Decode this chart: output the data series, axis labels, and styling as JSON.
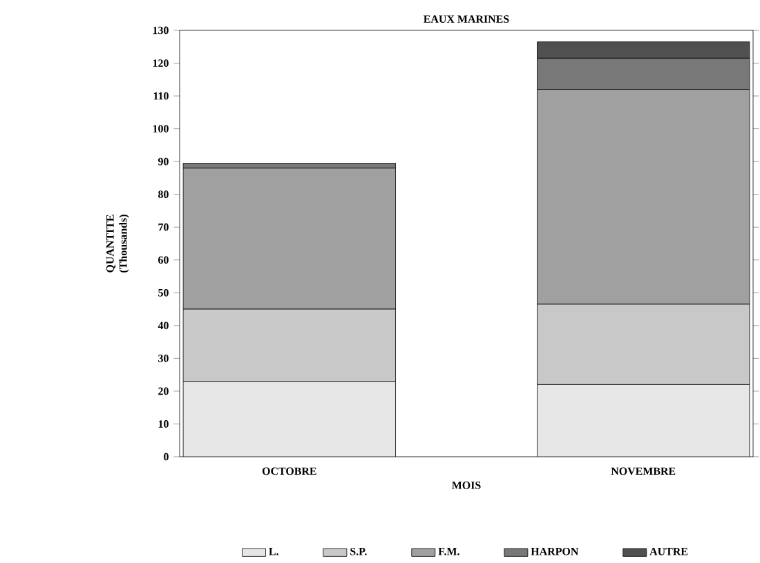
{
  "chart_data": {
    "type": "bar",
    "stacked": true,
    "title": "EAUX MARINES",
    "xlabel": "MOIS",
    "ylabel": "QUANTITE (Thousands)",
    "categories": [
      "OCTOBRE",
      "NOVEMBRE"
    ],
    "series": [
      {
        "name": "L.",
        "color": "#e6e6e6",
        "values": [
          23,
          22
        ]
      },
      {
        "name": "S.P.",
        "color": "#c8c8c8",
        "values": [
          22,
          24.5
        ]
      },
      {
        "name": "F.M.",
        "color": "#a0a0a0",
        "values": [
          43,
          65.5
        ]
      },
      {
        "name": "HARPON",
        "color": "#787878",
        "values": [
          1.5,
          9.5
        ]
      },
      {
        "name": "AUTRE",
        "color": "#505050",
        "values": [
          0,
          5
        ]
      }
    ],
    "ylim": [
      0,
      130
    ],
    "yticks": [
      0,
      10,
      20,
      30,
      40,
      50,
      60,
      70,
      80,
      90,
      100,
      110,
      120,
      130
    ],
    "grid": false,
    "legend": "bottom"
  }
}
